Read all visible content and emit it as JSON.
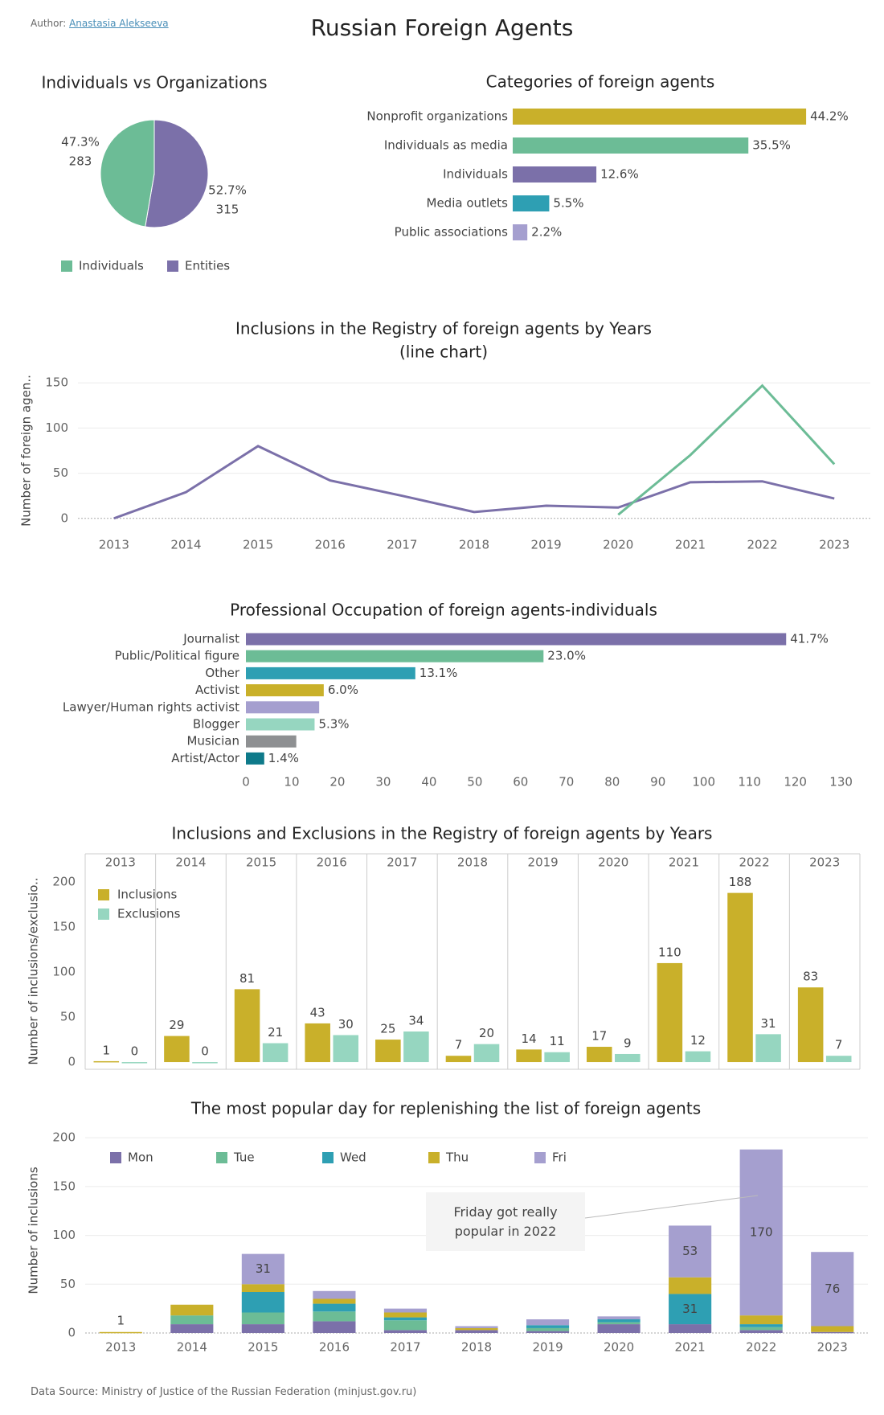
{
  "author_label": "Author:",
  "author": "Anastasia Alekseeva",
  "title": "Russian Foreign Agents",
  "source_label": "Data Source:",
  "source": "Ministry of Justice of the Russian Federation (minjust.gov.ru)",
  "chart_data": [
    {
      "type": "pie",
      "title": "Individuals vs Organizations",
      "categories": [
        "Individuals",
        "Entities"
      ],
      "values": [
        47.3,
        52.7
      ],
      "value_labels": [
        "47.3%",
        "52.7%"
      ],
      "counts": [
        283,
        315
      ],
      "colors": [
        "#6cbc96",
        "#7b70a9"
      ],
      "legend": "bottom"
    },
    {
      "type": "bar",
      "orientation": "horizontal",
      "title": "Categories of foreign agents",
      "categories": [
        "Nonprofit organizations",
        "Individuals as media",
        "Individuals",
        "Media outlets",
        "Public associations"
      ],
      "values": [
        44.2,
        35.5,
        12.6,
        5.5,
        2.2
      ],
      "value_labels": [
        "44.2%",
        "35.5%",
        "12.6%",
        "5.5%",
        "2.2%"
      ],
      "colors": [
        "#c9b02a",
        "#6cbc96",
        "#7b70a9",
        "#2e9fb3",
        "#a59fcf"
      ],
      "xlim": [
        0,
        50
      ]
    },
    {
      "type": "line",
      "title": "Inclusions in the Registry of foreign agents by Years",
      "subtitle": "(line chart)",
      "y_label": "Number of foreign agen..",
      "x": [
        2013,
        2014,
        2015,
        2016,
        2017,
        2018,
        2019,
        2020,
        2021,
        2022,
        2023
      ],
      "series": [
        {
          "color": "#7b70a9",
          "values": [
            0,
            29,
            80,
            42,
            25,
            7,
            14,
            12,
            40,
            41,
            22
          ]
        },
        {
          "color": "#6cbc96",
          "values": [
            null,
            null,
            null,
            null,
            null,
            null,
            null,
            4,
            70,
            147,
            60
          ]
        }
      ],
      "xlim": [
        2012.5,
        2023.5
      ],
      "xticks": [
        2013,
        2014,
        2015,
        2016,
        2017,
        2018,
        2019,
        2020,
        2021,
        2022,
        2023
      ],
      "ylim": [
        -10,
        160
      ],
      "yticks": [
        0,
        50,
        100,
        150
      ],
      "grid": true
    },
    {
      "type": "bar",
      "orientation": "horizontal",
      "title": "Professional Occupation of foreign agents-individuals",
      "categories": [
        "Journalist",
        "Public/Political figure",
        "Other",
        "Activist",
        "Lawyer/Human rights activist",
        "Blogger",
        "Musician",
        "Artist/Actor"
      ],
      "values": [
        118,
        65,
        37,
        17,
        16,
        15,
        11,
        4
      ],
      "value_labels": [
        "41.7%",
        "23.0%",
        "13.1%",
        "6.0%",
        null,
        "5.3%",
        null,
        "1.4%"
      ],
      "colors": [
        "#7b70a9",
        "#6cbc96",
        "#2e9fb3",
        "#c9b02a",
        "#a59fcf",
        "#96d6c0",
        "#8e9092",
        "#0e7a8a"
      ],
      "xlim": [
        0,
        132
      ],
      "xticks": [
        0,
        10,
        20,
        30,
        40,
        50,
        60,
        70,
        80,
        90,
        100,
        110,
        120,
        130
      ]
    },
    {
      "type": "bar",
      "facet": true,
      "title": "Inclusions and Exclusions in the Registry of foreign agents by Years",
      "y_label": "Number of inclusions/exclusio..",
      "categories": [
        "2013",
        "2014",
        "2015",
        "2016",
        "2017",
        "2018",
        "2019",
        "2020",
        "2021",
        "2022",
        "2023"
      ],
      "series": [
        {
          "name": "Inclusions",
          "color": "#c9b02a",
          "values": [
            1,
            29,
            81,
            43,
            25,
            7,
            14,
            17,
            110,
            188,
            83
          ]
        },
        {
          "name": "Exclusions",
          "color": "#96d6c0",
          "values": [
            0,
            0,
            21,
            30,
            34,
            20,
            11,
            9,
            12,
            31,
            7
          ]
        }
      ],
      "ylim": [
        -8,
        210
      ],
      "yticks": [
        0,
        50,
        100,
        150,
        200
      ],
      "show_values": true,
      "legend": "top-left"
    },
    {
      "type": "bar",
      "stacked": true,
      "title": "The most popular day for replenishing the list of foreign agents",
      "y_label": "Number of inclusions",
      "categories": [
        "2013",
        "2014",
        "2015",
        "2016",
        "2017",
        "2018",
        "2019",
        "2020",
        "2021",
        "2022",
        "2023"
      ],
      "series": [
        {
          "name": "Mon",
          "color": "#7b70a9",
          "values": [
            0,
            9,
            9,
            12,
            3,
            3,
            2,
            9,
            9,
            3,
            1
          ]
        },
        {
          "name": "Tue",
          "color": "#6cbc96",
          "values": [
            0,
            9,
            12,
            10,
            10,
            0,
            3,
            2,
            0,
            3,
            0
          ]
        },
        {
          "name": "Wed",
          "color": "#2e9fb3",
          "values": [
            0,
            0,
            21,
            8,
            3,
            0,
            3,
            3,
            31,
            3,
            0
          ],
          "value_labels": [
            null,
            null,
            null,
            null,
            null,
            null,
            null,
            null,
            "31",
            null,
            null
          ]
        },
        {
          "name": "Thu",
          "color": "#c9b02a",
          "values": [
            1,
            11,
            8,
            5,
            5,
            2,
            0,
            0,
            17,
            9,
            6
          ],
          "value_labels": [
            "1",
            null,
            null,
            null,
            null,
            null,
            null,
            null,
            null,
            null,
            null
          ]
        },
        {
          "name": "Fri",
          "color": "#a59fcf",
          "values": [
            0,
            0,
            31,
            8,
            4,
            2,
            6,
            3,
            53,
            170,
            76
          ],
          "value_labels": [
            null,
            null,
            "31",
            null,
            null,
            null,
            null,
            null,
            "53",
            "170",
            "76"
          ]
        }
      ],
      "ylim": [
        0,
        210
      ],
      "yticks": [
        0,
        50,
        100,
        150,
        200
      ],
      "grid": true,
      "legend": "top",
      "annotation": "Friday got really popular in 2022"
    }
  ]
}
